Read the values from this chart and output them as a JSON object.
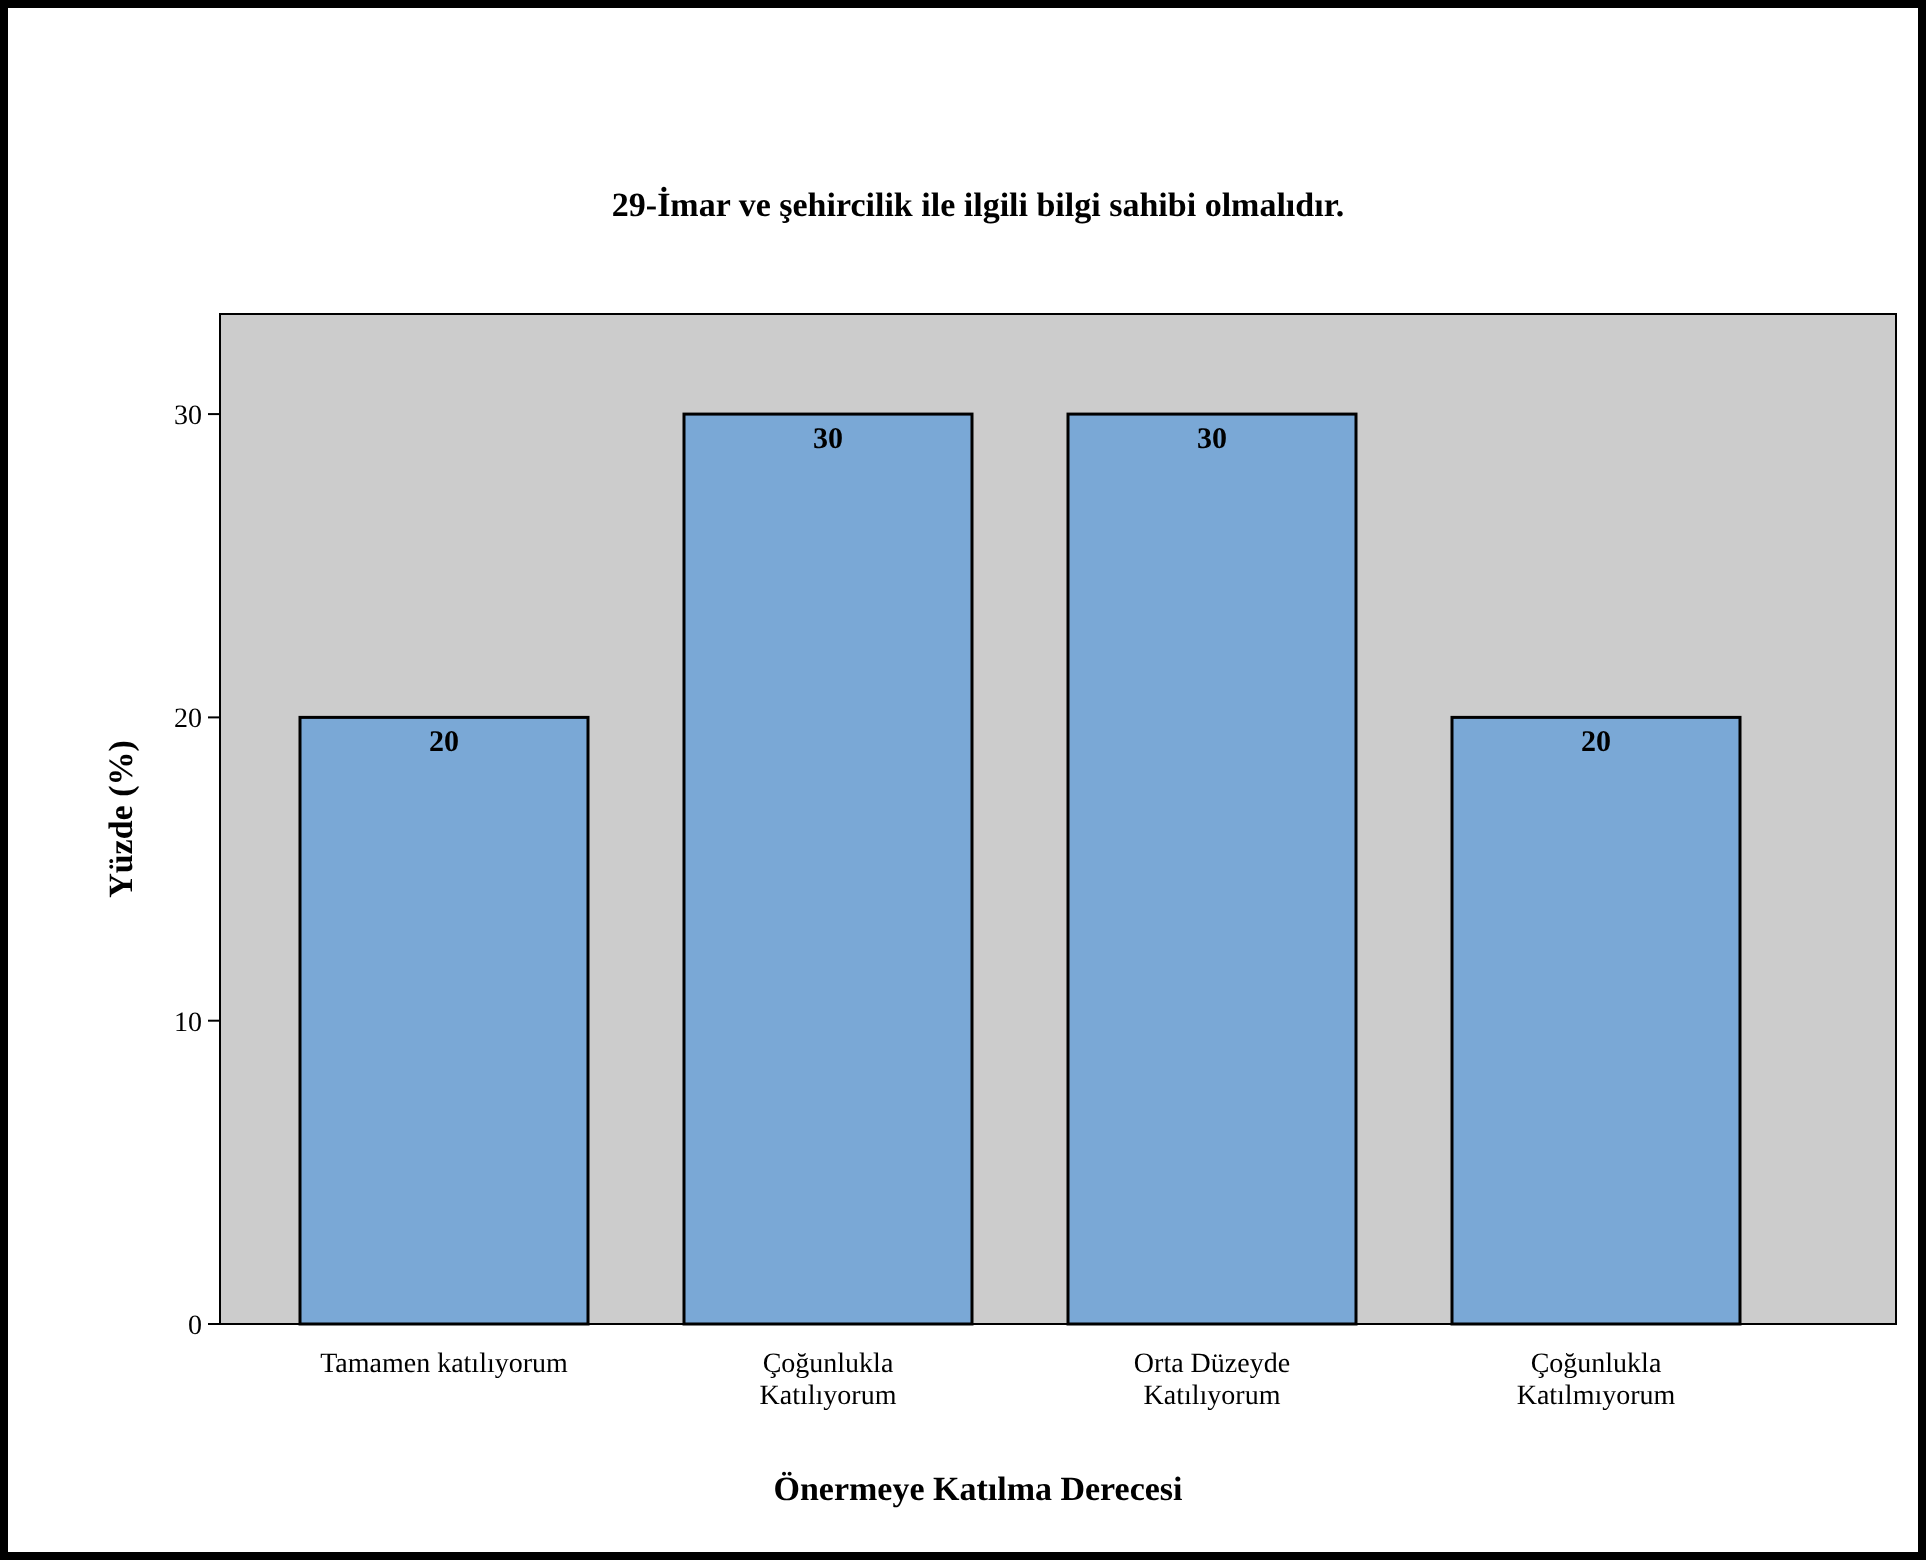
{
  "chart_data": {
    "type": "bar",
    "title": "29-İmar ve şehircilik ile ilgili bilgi sahibi olmalıdır.",
    "xlabel": "Önermeye Katılma Derecesi",
    "ylabel": "Yüzde (%)",
    "categories": [
      "Tamamen katılıyorum",
      "Çoğunlukla Katılıyorum",
      "Orta Düzeyde Katılıyorum",
      "Çoğunlukla Katılmıyorum"
    ],
    "values": [
      20,
      30,
      30,
      20
    ],
    "color": "#7aa8d6",
    "ylim": [
      0,
      33.3
    ],
    "yticks": [
      0,
      10,
      20,
      30
    ],
    "data_labels": true
  }
}
